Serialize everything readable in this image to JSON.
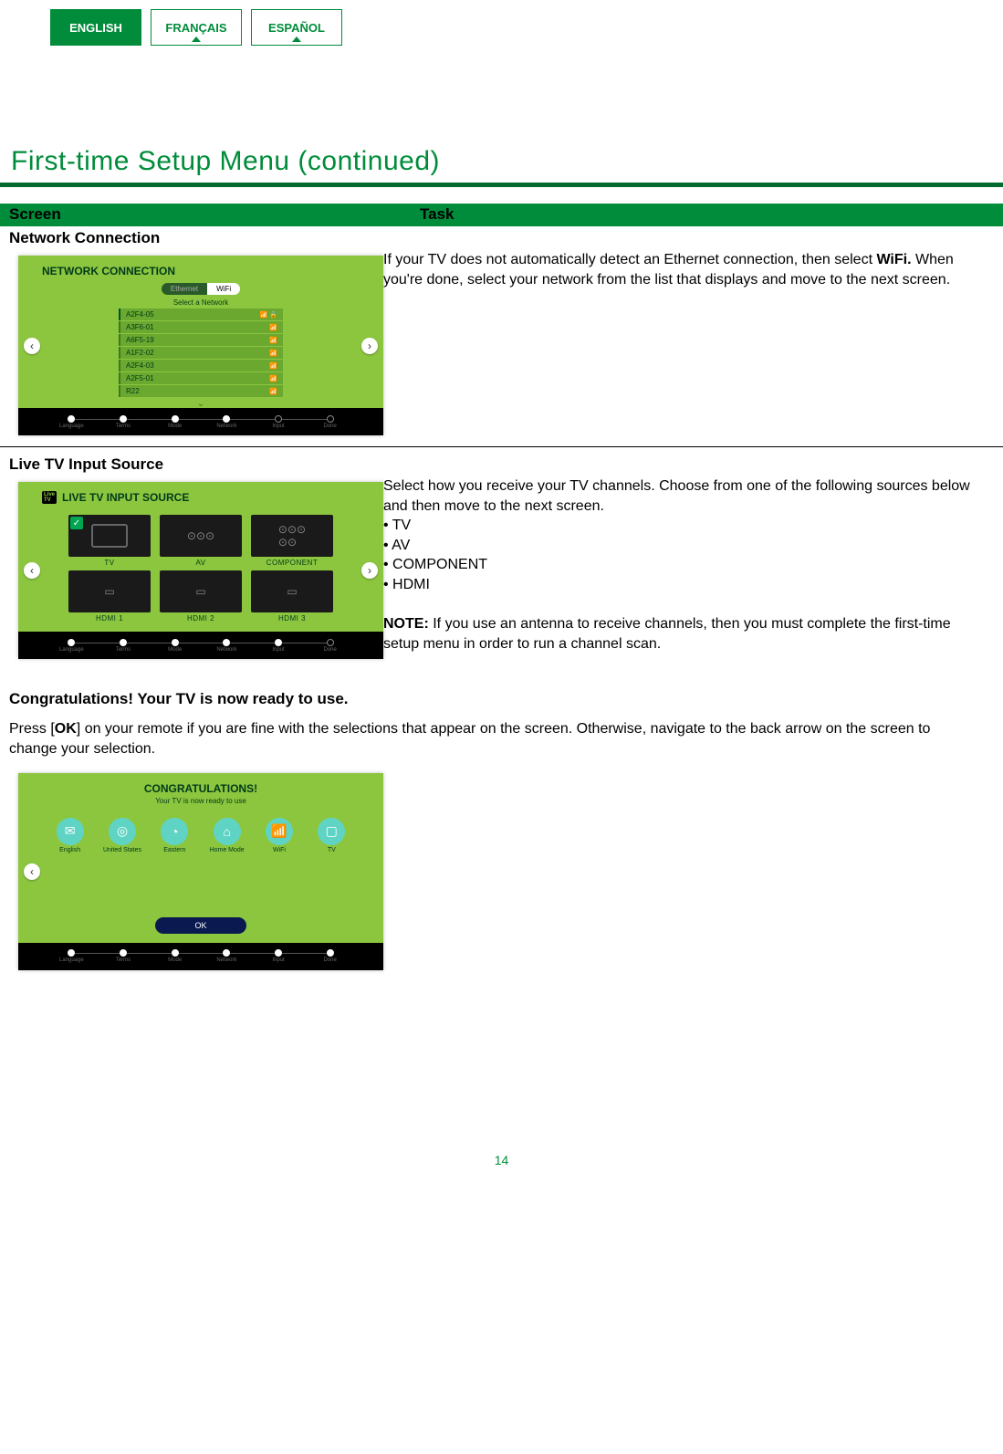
{
  "tabs": {
    "en": "ENGLISH",
    "fr": "FRANÇAIS",
    "es": "ESPAÑOL"
  },
  "heading": "First-time Setup Menu (continued)",
  "cols": {
    "c1": "Screen",
    "c2": "Task"
  },
  "network": {
    "sub": "Network Connection",
    "mini_title": "NETWORK CONNECTION",
    "toggle_off": "Ethernet",
    "toggle_on": "WiFi",
    "select_label": "Select a Network",
    "items": [
      "A2F4-05",
      "A3F6-01",
      "A6F5-19",
      "A1F2-02",
      "A2F4-03",
      "A2F5-01",
      "R22"
    ],
    "task": "If your TV does not automatically detect an Ethernet connection, then select <b>WiFi.</b> When you're done, select your network from the list that displays and move to the next screen."
  },
  "input": {
    "sub": "Live TV Input Source",
    "mini_title": "LIVE TV INPUT SOURCE",
    "tiles": [
      "TV",
      "AV",
      "COMPONENT",
      "HDMI 1",
      "HDMI 2",
      "HDMI 3"
    ],
    "task_a": "Select how you receive your TV channels. Choose from one of the following sources below and then move to the next screen.",
    "bullets": [
      "TV",
      "AV",
      "COMPONENT",
      "HDMI"
    ],
    "note": "<b>NOTE:</b> If you use an antenna to receive channels, then you must complete the first-time setup menu in order to run a channel scan."
  },
  "steps": [
    "Language",
    "Terms",
    "Mode",
    "Network",
    "Input",
    "Done"
  ],
  "congrats": {
    "head": "Congratulations! Your TV is now ready to use.",
    "body": "Press [<b>OK</b>] on your remote if you are fine with the selections that appear on the screen. Otherwise, navigate to the back arrow on the screen to change your selection.",
    "mini_title": "CONGRATULATIONS!",
    "sub2": "Your TV is now ready to use",
    "summary": [
      "English",
      "United States",
      "Eastern",
      "Home Mode",
      "WiFi",
      "TV"
    ],
    "icons": [
      "✉",
      "◎",
      "◔",
      "⌂",
      "📶",
      "▢"
    ],
    "ok": "OK"
  },
  "page": "14",
  "colors": {
    "green": "#008c3a",
    "bar": "#006b2c",
    "lime": "#8cc63f"
  }
}
